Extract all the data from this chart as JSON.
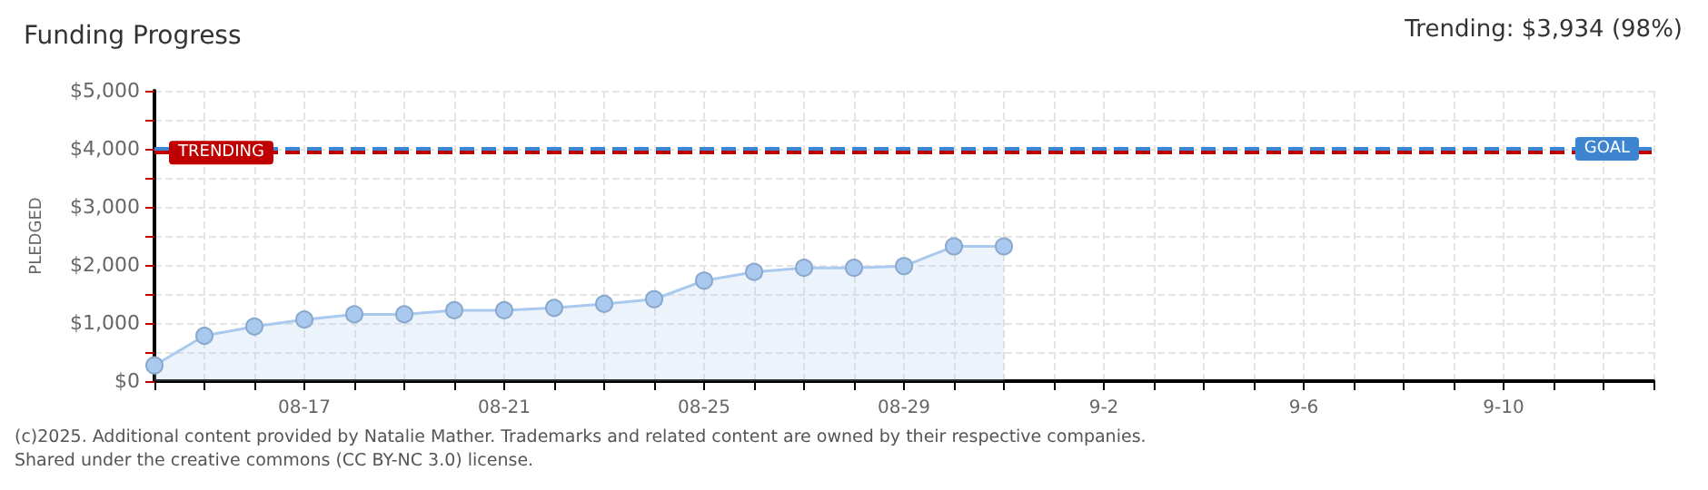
{
  "chart_data": {
    "type": "area",
    "title": "Funding Progress",
    "ylabel": "PLEDGED",
    "annotations": [
      "Trending: $3,934 (98%)",
      "(c)2025. Additional content provided by Natalie Mather. Trademarks and related content are owned by their respective companies.",
      "Shared under the creative commons (CC BY-NC 3.0) license."
    ],
    "categories": [
      null,
      null,
      null,
      "08-17",
      null,
      null,
      null,
      "08-21",
      null,
      null,
      null,
      "08-25",
      null,
      null,
      null,
      "08-29",
      null,
      null,
      null,
      "9-2",
      null,
      null,
      null,
      "9-6",
      null,
      null,
      null,
      "9-10",
      null,
      null,
      null
    ],
    "series": [
      {
        "color": "#a9c9ef",
        "values": [
          270,
          780,
          940,
          1060,
          1150,
          1150,
          1220,
          1220,
          1260,
          1330,
          1410,
          1730,
          1880,
          1950,
          1950,
          1980,
          2320,
          2320,
          null,
          null,
          null,
          null,
          null,
          null,
          null,
          null,
          null,
          null,
          null,
          null,
          null
        ]
      }
    ],
    "ylim": [
      0,
      5000
    ],
    "yticks": [
      {
        "value": 0,
        "label": "$0"
      },
      {
        "value": 500,
        "label": null
      },
      {
        "value": 1000,
        "label": "$1,000"
      },
      {
        "value": 1500,
        "label": null
      },
      {
        "value": 2000,
        "label": "$2,000"
      },
      {
        "value": 2500,
        "label": null
      },
      {
        "value": 3000,
        "label": "$3,000"
      },
      {
        "value": 3500,
        "label": null
      },
      {
        "value": 4000,
        "label": "$4,000"
      },
      {
        "value": 4500,
        "label": null
      },
      {
        "value": 5000,
        "label": "$5,000"
      }
    ],
    "ref_lines": [
      {
        "axis": "y",
        "value": 3934,
        "label": "TRENDING",
        "color": "#c00000",
        "line_style": "dashed"
      },
      {
        "axis": "y",
        "value": 4000,
        "label": "GOAL",
        "color": "#3d85d0",
        "line_style": "dashed"
      }
    ],
    "grid": true,
    "marker": "circle",
    "line_style": "solid"
  }
}
